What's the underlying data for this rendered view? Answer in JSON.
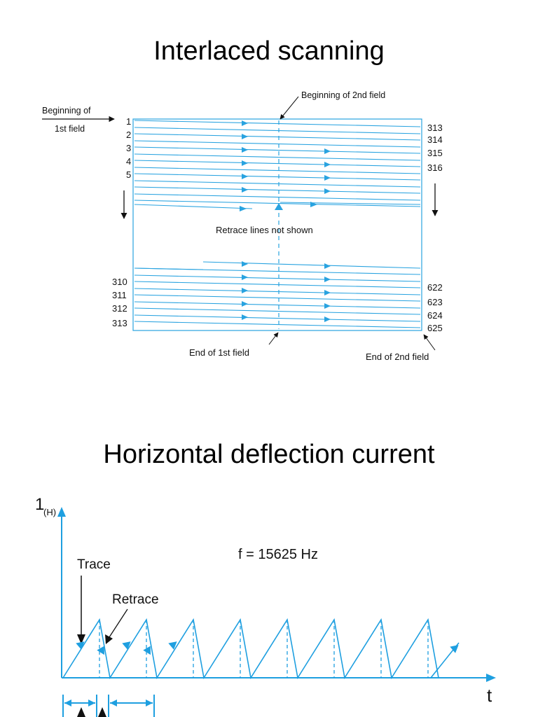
{
  "slide": {
    "title_top": "Interlaced scanning",
    "title_bottom": "Horizontal deflection current"
  },
  "scan_diagram": {
    "beginning_1st_field_line1": "Beginning of",
    "beginning_1st_field_line2": "1st field",
    "beginning_2nd_field": "Beginning of 2nd field",
    "retrace_note": "Retrace lines not shown",
    "end_1st_field": "End of 1st field",
    "end_2nd_field": "End of 2nd field",
    "left_top_numbers": [
      "1",
      "2",
      "3",
      "4",
      "5"
    ],
    "left_bottom_numbers": [
      "310",
      "311",
      "312",
      "313"
    ],
    "right_top_numbers": [
      "313",
      "314",
      "315",
      "316"
    ],
    "right_bottom_numbers": [
      "622",
      "623",
      "624",
      "625"
    ],
    "line_color": "#29a3e0"
  },
  "deflection_graph": {
    "y_axis_label": "1",
    "y_axis_subscript": "(H)",
    "x_axis_label": "t",
    "frequency_label": "f = 15625 Hz",
    "trace_label": "Trace",
    "retrace_label": "Retrace",
    "cycle_count": 8,
    "accent_color": "#1e9fe0"
  }
}
